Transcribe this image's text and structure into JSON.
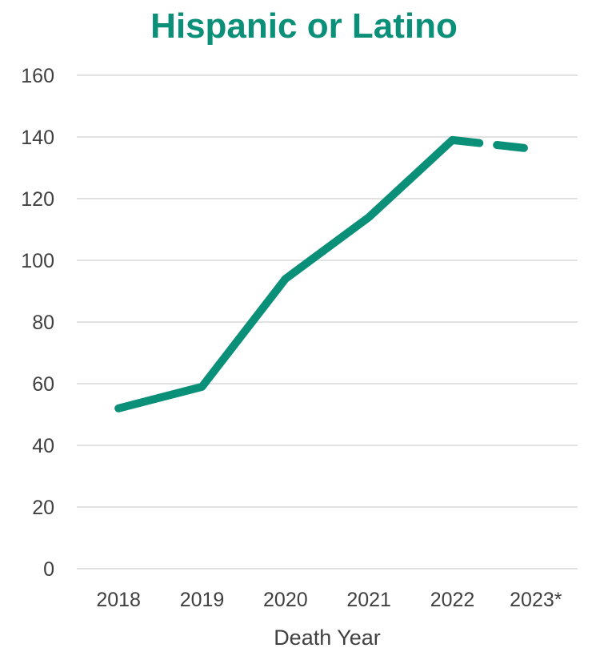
{
  "chart_data": {
    "type": "line",
    "title": "Hispanic or Latino",
    "xlabel": "Death Year",
    "ylabel": "",
    "categories": [
      "2018",
      "2019",
      "2020",
      "2021",
      "2022",
      "2023*"
    ],
    "series": [
      {
        "values": [
          52,
          59,
          94,
          114,
          139,
          136
        ]
      }
    ],
    "projected_from_index": 4,
    "ylim": [
      0,
      160
    ],
    "yticks": [
      0,
      20,
      40,
      60,
      80,
      100,
      120,
      140,
      160
    ],
    "grid": true,
    "legend": "none"
  },
  "colors": {
    "accent": "#0a8f78",
    "grid": "#d9d9d9",
    "text": "#404040"
  }
}
